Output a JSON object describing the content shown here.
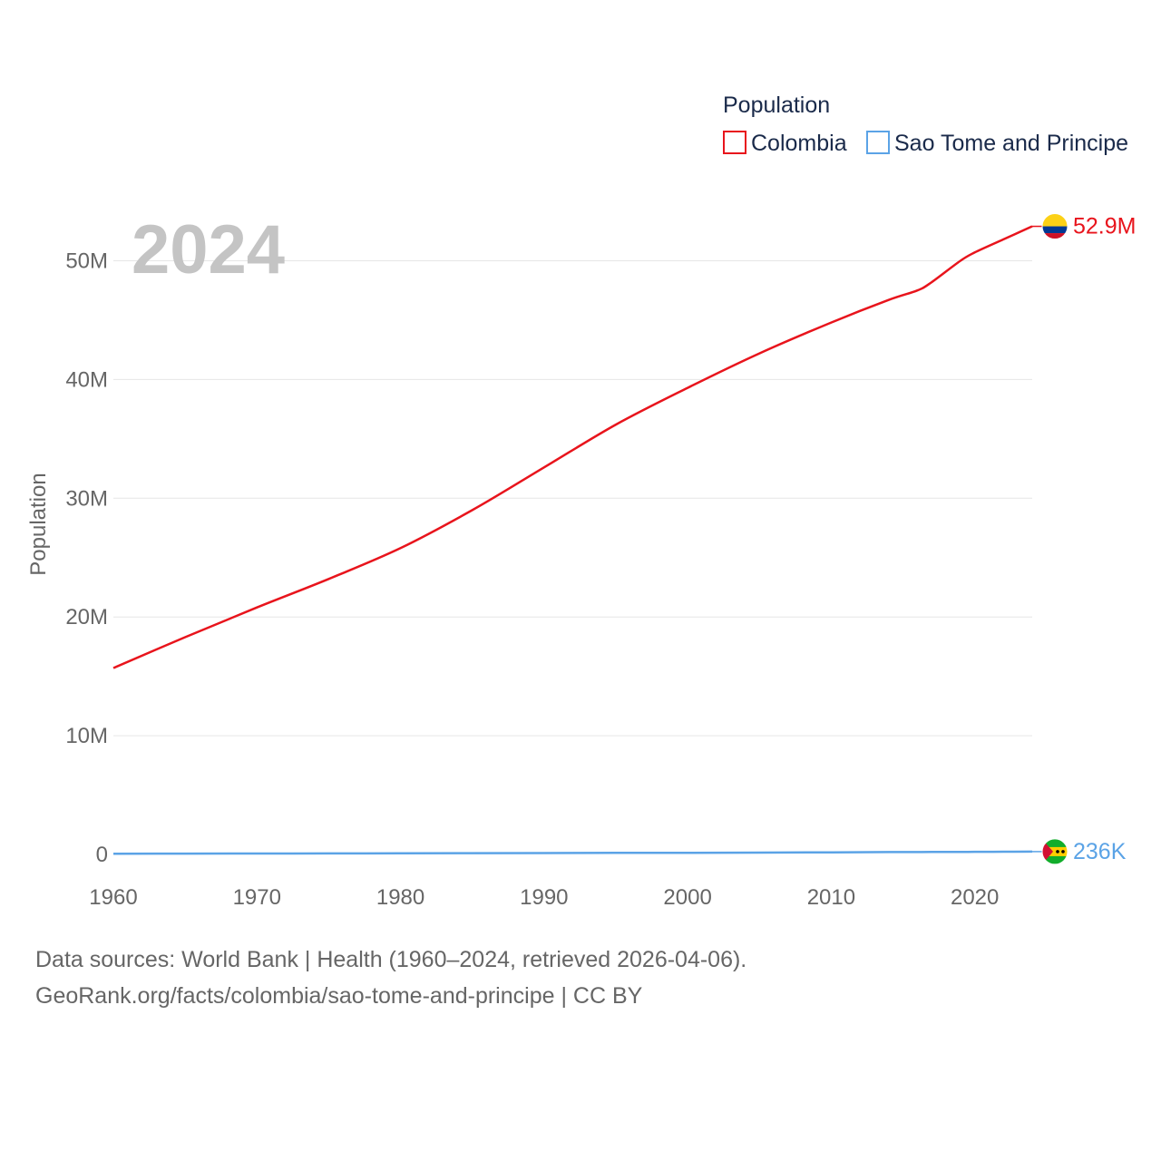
{
  "chart_data": {
    "type": "line",
    "legend_title": "Population",
    "legend_position": "top-right",
    "ylabel": "Population",
    "year_label": "2024",
    "xlim": [
      1960,
      2024
    ],
    "ylim": [
      0,
      55000000
    ],
    "x_ticks": [
      1960,
      1970,
      1980,
      1990,
      2000,
      2010,
      2020
    ],
    "x_tick_labels": [
      "1960",
      "1970",
      "1980",
      "1990",
      "2000",
      "2010",
      "2020"
    ],
    "y_ticks": [
      0,
      10000000,
      20000000,
      30000000,
      40000000,
      50000000
    ],
    "y_tick_labels": [
      "0",
      "10M",
      "20M",
      "30M",
      "40M",
      "50M"
    ],
    "grid": true,
    "x": [
      1960,
      1965,
      1970,
      1975,
      1980,
      1985,
      1990,
      1995,
      2000,
      2005,
      2010,
      2014,
      2016,
      2017,
      2019,
      2020,
      2022,
      2024
    ],
    "series": [
      {
        "name": "Colombia",
        "color": "#e8141c",
        "end_label": "52.9M",
        "values": [
          15700000,
          18300000,
          20800000,
          23200000,
          25800000,
          29000000,
          32600000,
          36200000,
          39300000,
          42200000,
          44800000,
          46700000,
          47500000,
          48200000,
          50000000,
          50700000,
          51800000,
          52900000
        ]
      },
      {
        "name": "Sao Tome and Principe",
        "color": "#5ba3e6",
        "end_label": "236K",
        "values": [
          61000,
          66000,
          74000,
          82000,
          94000,
          106000,
          117000,
          128000,
          140000,
          156000,
          178000,
          195000,
          202000,
          206000,
          215000,
          219000,
          227000,
          236000
        ]
      }
    ]
  },
  "footer": {
    "line1": "Data sources: World Bank | Health (1960–2024, retrieved 2026-04-06).",
    "line2": "GeoRank.org/facts/colombia/sao-tome-and-principe | CC BY"
  }
}
